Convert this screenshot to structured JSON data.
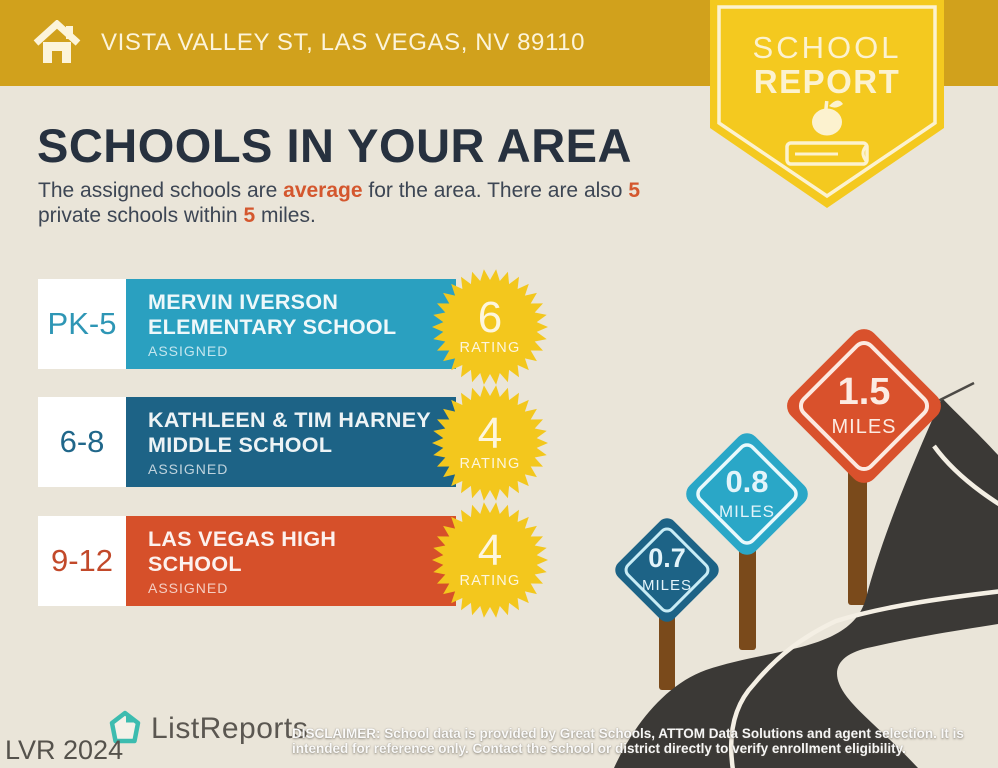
{
  "header": {
    "address": "VISTA VALLEY ST, LAS VEGAS, NV 89110"
  },
  "badge": {
    "line1": "SCHOOL",
    "line2": "REPORT"
  },
  "main": {
    "title": "SCHOOLS IN YOUR AREA",
    "subtitle": {
      "l1a": "The assigned schools are ",
      "l1b": "average",
      "l1c": " for the area. There are also ",
      "l1d": "5",
      "l2a": "private schools within ",
      "l2b": "5",
      "l2c": " miles."
    }
  },
  "labels": {
    "rating": "RATING"
  },
  "schools": [
    {
      "grades": "PK-5",
      "name_line1": "MERVIN IVERSON",
      "name_line2": "ELEMENTARY SCHOOL",
      "tag": "ASSIGNED",
      "rating": "6"
    },
    {
      "grades": "6-8",
      "name_line1": "KATHLEEN & TIM HARNEY",
      "name_line2": "MIDDLE SCHOOL",
      "tag": "ASSIGNED",
      "rating": "4"
    },
    {
      "grades": "9-12",
      "name_line1": "LAS VEGAS HIGH",
      "name_line2": "SCHOOL",
      "tag": "ASSIGNED",
      "rating": "4"
    }
  ],
  "distances": [
    {
      "value": "0.7",
      "unit": "MILES"
    },
    {
      "value": "0.8",
      "unit": "MILES"
    },
    {
      "value": "1.5",
      "unit": "MILES"
    }
  ],
  "footer": {
    "brand": "ListReports",
    "watermark": "LVR 2024",
    "disclaimer_label": "DISCLAIMER:",
    "disclaimer_text": " School data is provided by Great Schools, ATTOM Data Solutions and agent selection. It is intended for reference only. Contact the school or district directly to verify enrollment eligibility."
  },
  "colors": {
    "header_gold": "#d1a11c",
    "badge_yellow": "#f4c91f",
    "background_cream": "#eae5d9",
    "title_navy": "#27313f",
    "accent_orange": "#d4572e",
    "row_teal": "#2aa0c0",
    "row_blue": "#1d6386",
    "row_red": "#d6502a",
    "starburst_yellow": "#f3c71d",
    "road_gray": "#3b3936",
    "post_brown": "#7a4a1b",
    "logo_teal": "#3cbcaf"
  }
}
